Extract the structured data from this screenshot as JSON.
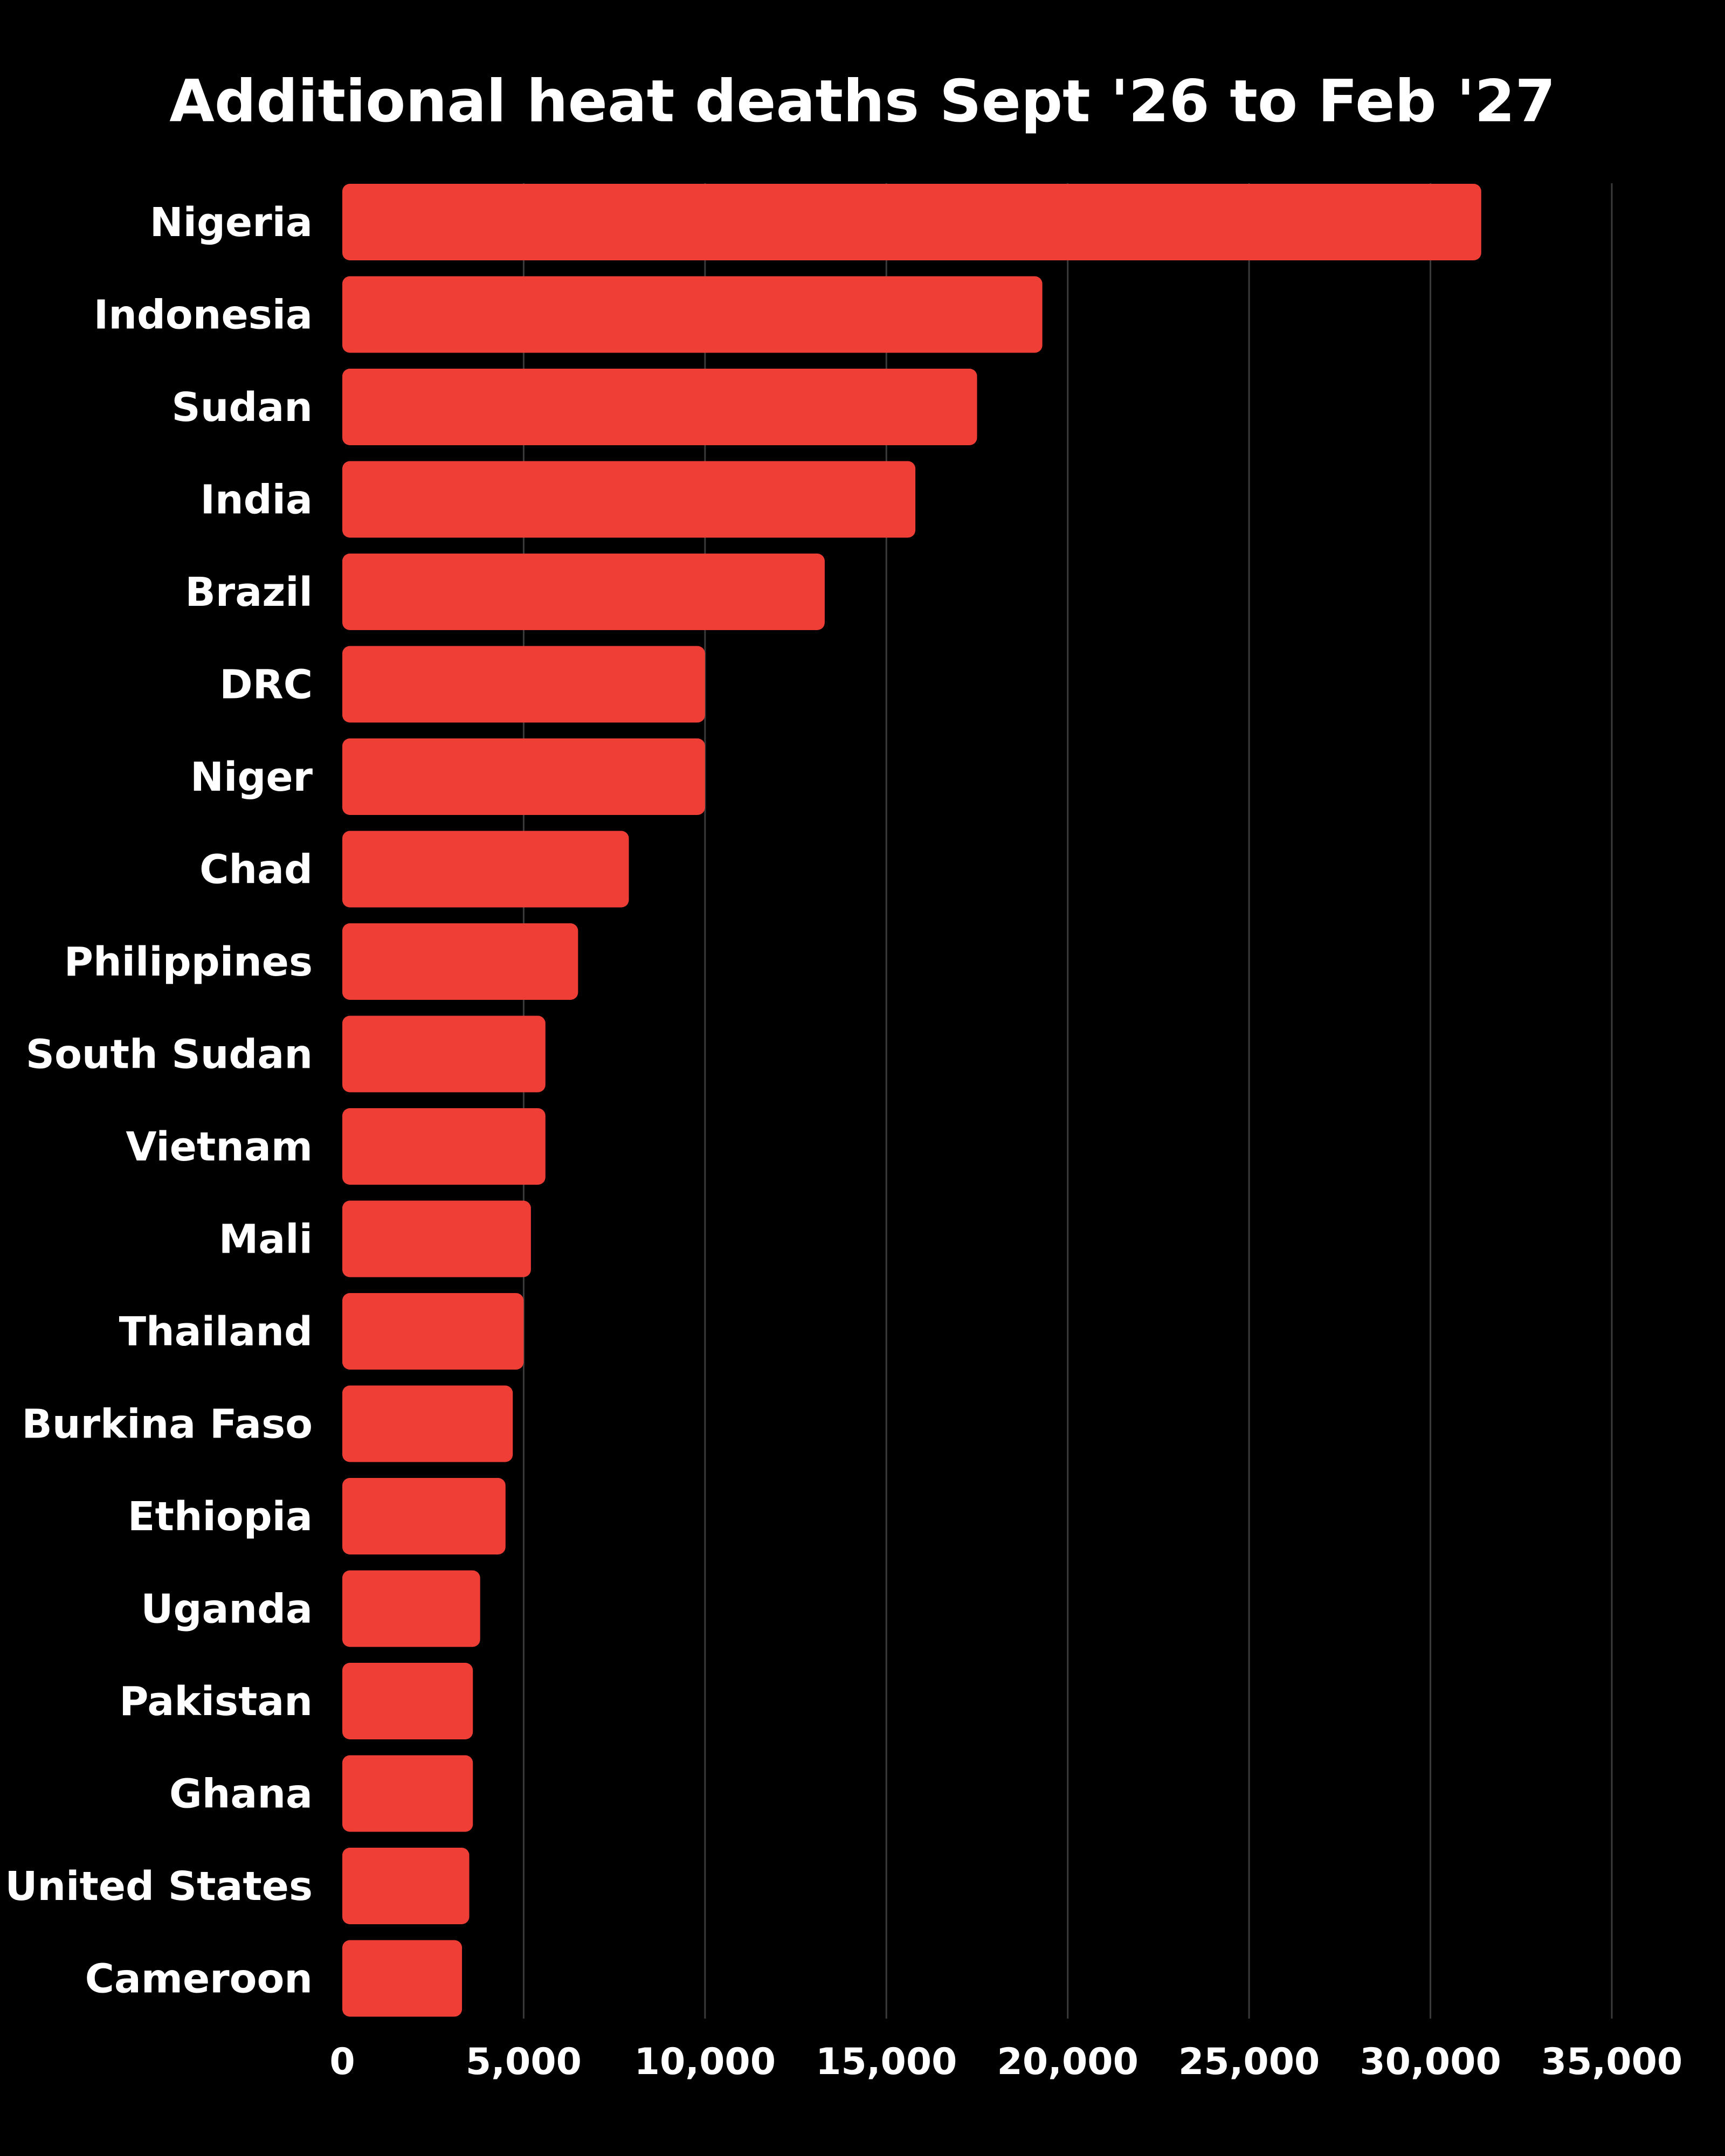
{
  "chart_data": {
    "type": "bar",
    "orientation": "horizontal",
    "title": "Additional heat deaths Sept '26 to Feb '27",
    "xlabel": "",
    "ylabel": "",
    "categories": [
      "Nigeria",
      "Indonesia",
      "Sudan",
      "India",
      "Brazil",
      "DRC",
      "Niger",
      "Chad",
      "Philippines",
      "South Sudan",
      "Vietnam",
      "Mali",
      "Thailand",
      "Burkina Faso",
      "Ethiopia",
      "Uganda",
      "Pakistan",
      "Ghana",
      "United States",
      "Cameroon"
    ],
    "values": [
      31400,
      19300,
      17500,
      15800,
      13300,
      10000,
      10000,
      7900,
      6500,
      5600,
      5600,
      5200,
      5000,
      4700,
      4500,
      3800,
      3600,
      3600,
      3500,
      3300
    ],
    "xlim": [
      0,
      35000
    ],
    "xticks": [
      0,
      5000,
      10000,
      15000,
      20000,
      25000,
      30000,
      35000
    ],
    "xtick_labels": [
      "0",
      "5,000",
      "10,000",
      "15,000",
      "20,000",
      "25,000",
      "30,000",
      "35,000"
    ],
    "grid": true,
    "legend": "none",
    "colors": {
      "background": "#000000",
      "bar": "#ef3e36",
      "text": "#ffffff",
      "grid": "#3a3a3a"
    }
  }
}
